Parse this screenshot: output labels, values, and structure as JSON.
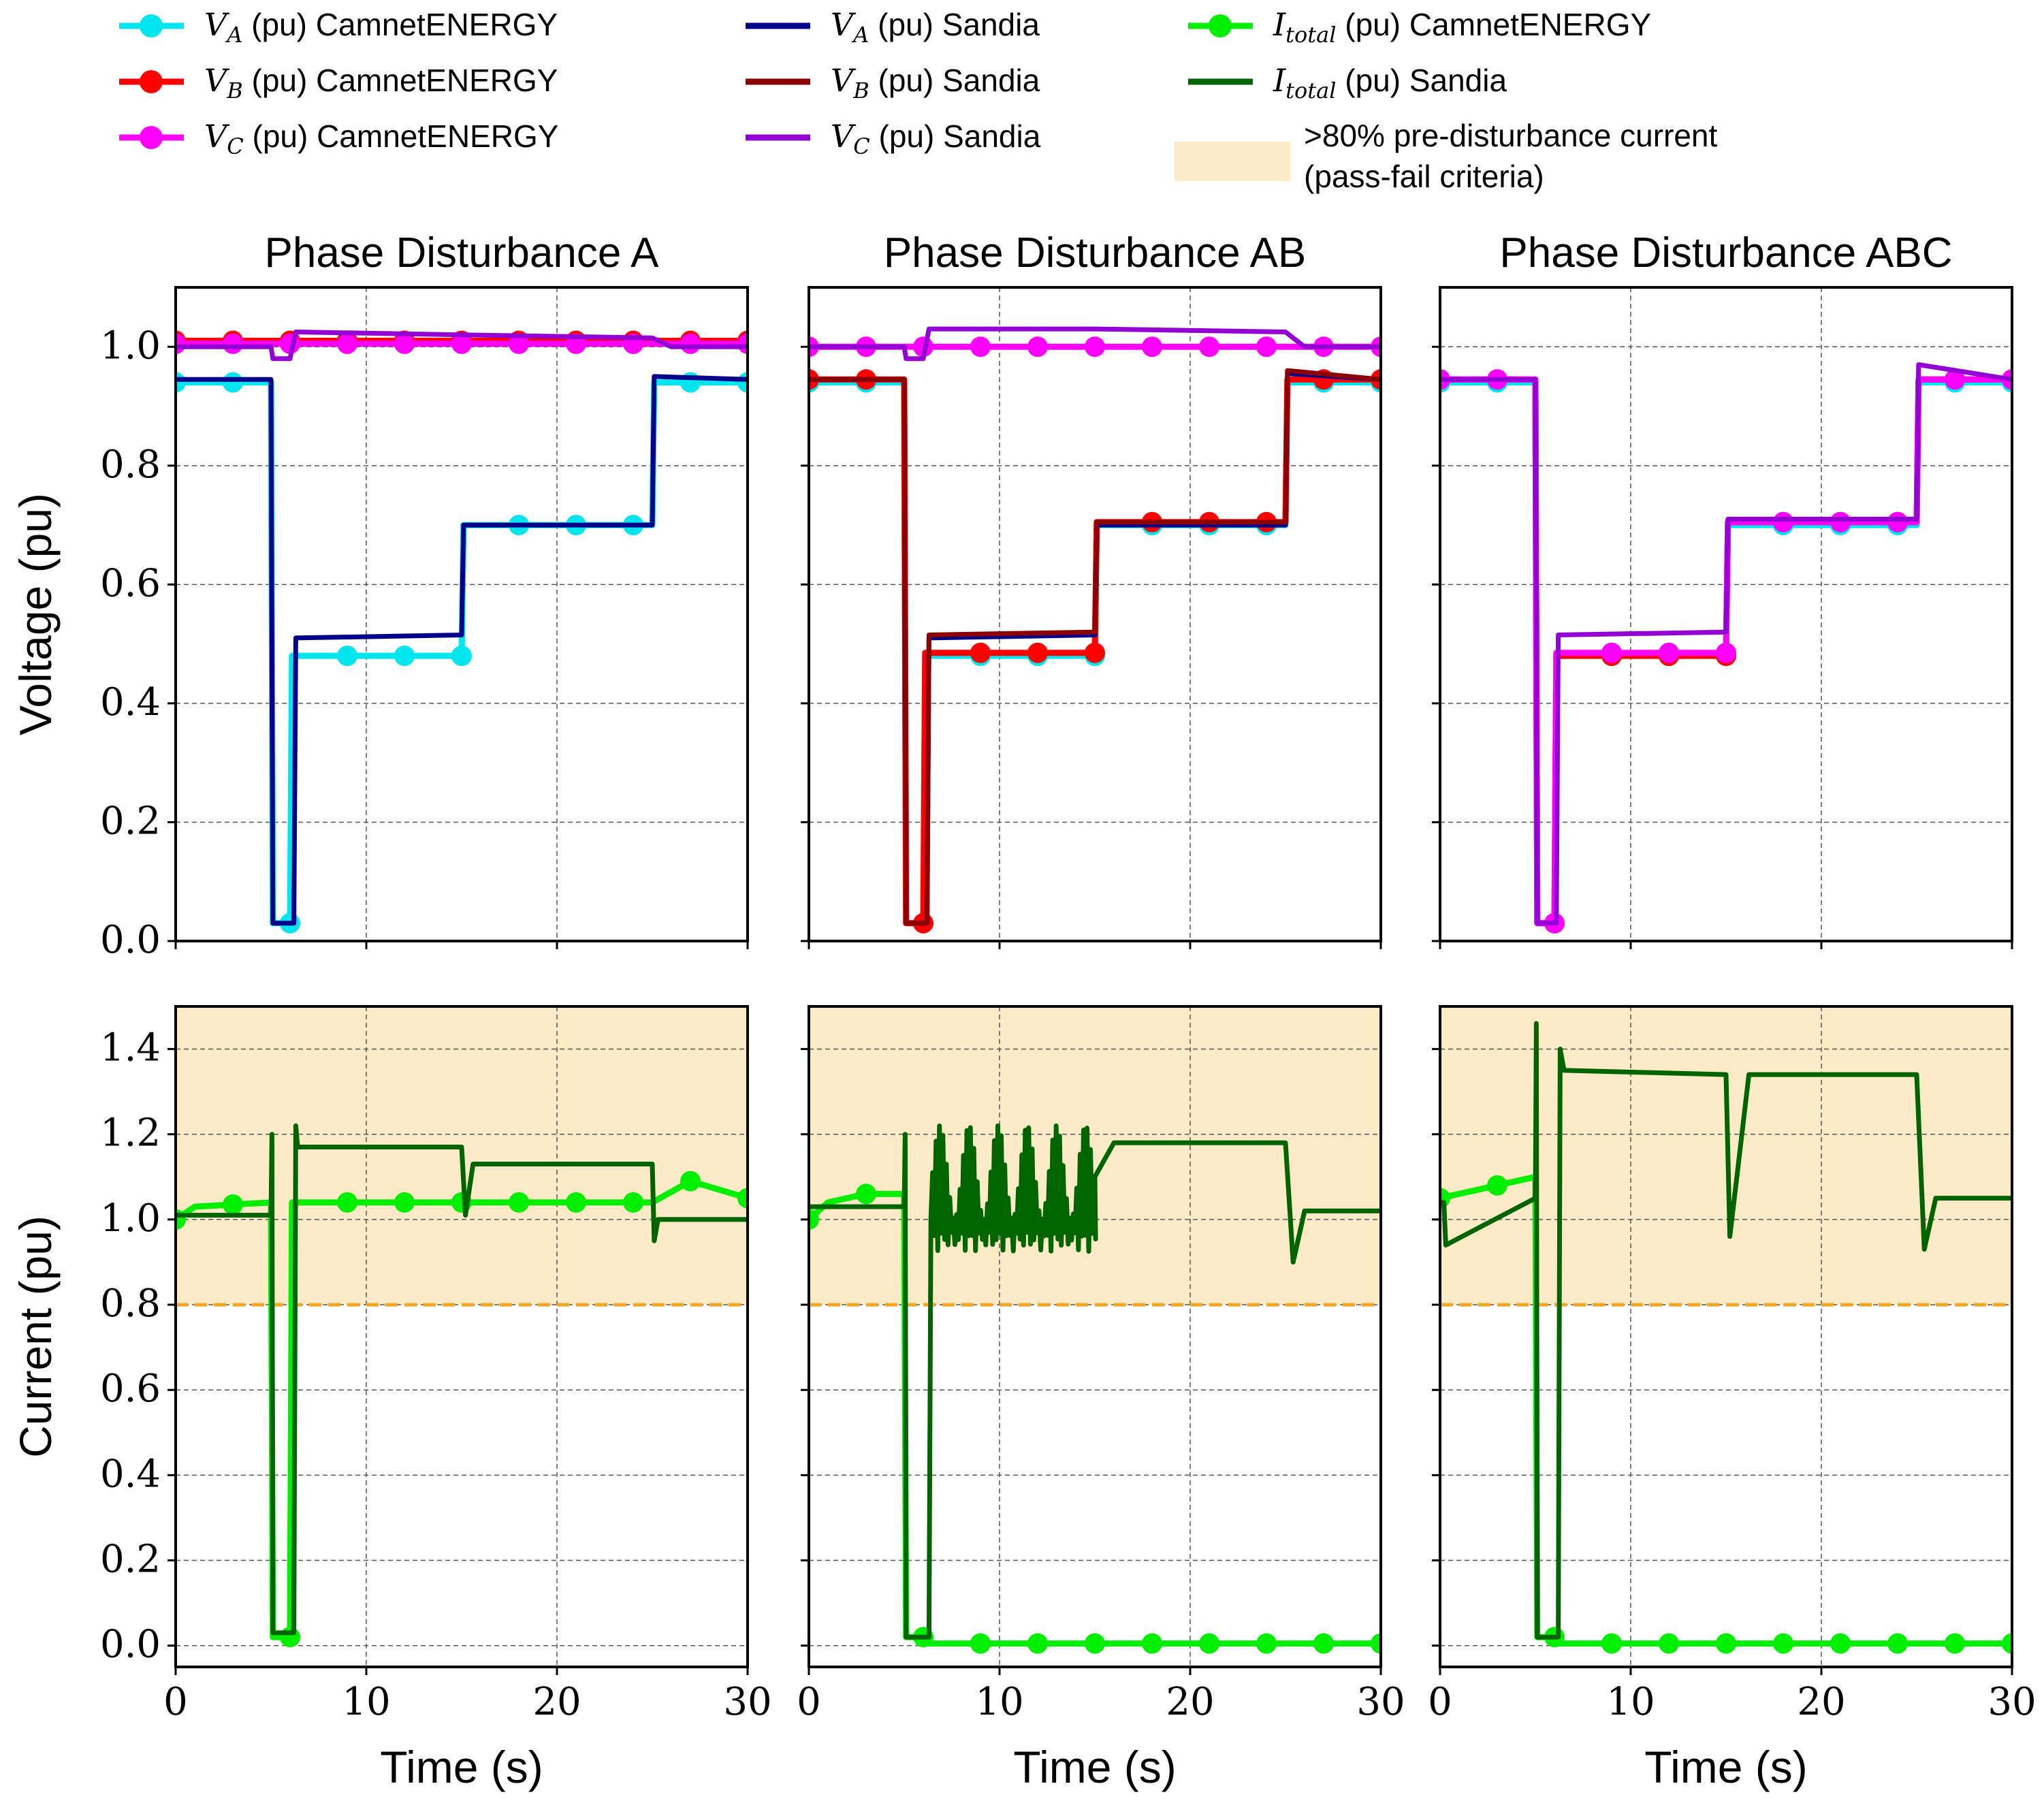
{
  "legend": {
    "entries": [
      {
        "var": "V",
        "sub": "A",
        "unit": "(pu)",
        "source": "CamnetENERGY",
        "color": "#00e5ee",
        "marker": true
      },
      {
        "var": "V",
        "sub": "B",
        "unit": "(pu)",
        "source": "CamnetENERGY",
        "color": "#ff0000",
        "marker": true
      },
      {
        "var": "V",
        "sub": "C",
        "unit": "(pu)",
        "source": "CamnetENERGY",
        "color": "#ff00ff",
        "marker": true
      },
      {
        "var": "V",
        "sub": "A",
        "unit": "(pu)",
        "source": "Sandia",
        "color": "#00008b",
        "marker": false
      },
      {
        "var": "V",
        "sub": "B",
        "unit": "(pu)",
        "source": "Sandia",
        "color": "#8b0000",
        "marker": false
      },
      {
        "var": "V",
        "sub": "C",
        "unit": "(pu)",
        "source": "Sandia",
        "color": "#9400d3",
        "marker": false
      },
      {
        "var": "I",
        "sub": "total",
        "unit": "(pu)",
        "source": "CamnetENERGY",
        "color": "#00ee00",
        "marker": true
      },
      {
        "var": "I",
        "sub": "total",
        "unit": "(pu)",
        "source": "Sandia",
        "color": "#006400",
        "marker": false
      }
    ],
    "band_label_line1": ">80% pre-disturbance current",
    "band_label_line2": "(pass-fail criteria)",
    "band_color": "#fdebc8"
  },
  "chart_data": [
    {
      "type": "line",
      "panel": "voltage",
      "title": "Phase Disturbance A",
      "ylabel": "Voltage (pu)",
      "xlim": [
        0,
        30
      ],
      "ylim": [
        0,
        1.1
      ],
      "yticks": [
        "0.0",
        "0.2",
        "0.4",
        "0.6",
        "0.8",
        "1.0"
      ],
      "xticks": [
        "0",
        "10",
        "20",
        "30"
      ],
      "series": [
        {
          "name": "V_A (pu) CamnetENERGY",
          "color": "#00e5ee",
          "marker": true,
          "x": [
            0,
            5,
            5.1,
            6,
            6.1,
            15,
            15.1,
            25,
            25.1,
            30
          ],
          "y": [
            0.94,
            0.94,
            0.03,
            0.03,
            0.48,
            0.48,
            0.7,
            0.7,
            0.94,
            0.94
          ]
        },
        {
          "name": "V_B (pu) CamnetENERGY",
          "color": "#ff0000",
          "marker": true,
          "x": [
            0,
            30
          ],
          "y": [
            1.01,
            1.01
          ]
        },
        {
          "name": "V_C (pu) CamnetENERGY",
          "color": "#ff00ff",
          "marker": true,
          "x": [
            0,
            30
          ],
          "y": [
            1.005,
            1.005
          ]
        },
        {
          "name": "V_A (pu) Sandia",
          "color": "#00008b",
          "marker": false,
          "x": [
            0,
            5,
            5.1,
            6.2,
            6.3,
            15,
            15.1,
            25,
            25.1,
            30
          ],
          "y": [
            0.945,
            0.945,
            0.03,
            0.03,
            0.51,
            0.515,
            0.7,
            0.7,
            0.95,
            0.945
          ]
        },
        {
          "name": "V_C (pu) Sandia",
          "color": "#9400d3",
          "marker": false,
          "x": [
            0,
            5,
            5.1,
            6,
            6.3,
            15,
            25,
            26,
            30
          ],
          "y": [
            1.0,
            1.0,
            0.98,
            0.98,
            1.025,
            1.02,
            1.015,
            1.0,
            1.0
          ]
        }
      ],
      "markers": [
        {
          "x": [
            0,
            3,
            6,
            9,
            12,
            15,
            18,
            21,
            24,
            27,
            30
          ],
          "series": [
            "V_A",
            "V_B",
            "V_C"
          ]
        }
      ]
    },
    {
      "type": "line",
      "panel": "voltage",
      "title": "Phase Disturbance AB",
      "ylabel": "",
      "xlim": [
        0,
        30
      ],
      "ylim": [
        0,
        1.1
      ],
      "series": [
        {
          "name": "V_A (pu) CamnetENERGY",
          "color": "#00e5ee",
          "marker": true,
          "x": [
            0,
            5,
            5.1,
            6,
            6.1,
            15,
            15.1,
            25,
            25.1,
            30
          ],
          "y": [
            0.94,
            0.94,
            0.03,
            0.03,
            0.48,
            0.48,
            0.7,
            0.7,
            0.94,
            0.94
          ]
        },
        {
          "name": "V_B (pu) CamnetENERGY",
          "color": "#ff0000",
          "marker": true,
          "x": [
            0,
            5,
            5.1,
            6,
            6.1,
            15,
            15.1,
            25,
            25.1,
            30
          ],
          "y": [
            0.945,
            0.945,
            0.03,
            0.03,
            0.485,
            0.485,
            0.705,
            0.705,
            0.945,
            0.945
          ]
        },
        {
          "name": "V_C (pu) CamnetENERGY",
          "color": "#ff00ff",
          "marker": true,
          "x": [
            0,
            30
          ],
          "y": [
            1.0,
            1.0
          ]
        },
        {
          "name": "V_A (pu) Sandia",
          "color": "#00008b",
          "marker": false,
          "x": [
            0,
            5,
            5.1,
            6.2,
            6.3,
            15,
            15.1,
            25,
            25.1,
            30
          ],
          "y": [
            0.945,
            0.945,
            0.03,
            0.03,
            0.51,
            0.515,
            0.7,
            0.7,
            0.955,
            0.945
          ]
        },
        {
          "name": "V_B (pu) Sandia",
          "color": "#8b0000",
          "marker": false,
          "x": [
            0,
            5,
            5.1,
            6.2,
            6.3,
            15,
            15.1,
            25,
            25.1,
            30
          ],
          "y": [
            0.945,
            0.945,
            0.03,
            0.03,
            0.515,
            0.52,
            0.705,
            0.705,
            0.96,
            0.945
          ]
        },
        {
          "name": "V_C (pu) Sandia",
          "color": "#9400d3",
          "marker": false,
          "x": [
            0,
            5,
            5.1,
            6,
            6.3,
            15,
            25,
            26,
            30
          ],
          "y": [
            1.0,
            1.0,
            0.98,
            0.98,
            1.03,
            1.03,
            1.025,
            1.0,
            1.0
          ]
        }
      ]
    },
    {
      "type": "line",
      "panel": "voltage",
      "title": "Phase Disturbance ABC",
      "ylabel": "",
      "xlim": [
        0,
        30
      ],
      "ylim": [
        0,
        1.1
      ],
      "series": [
        {
          "name": "V_A (pu) CamnetENERGY",
          "color": "#00e5ee",
          "marker": true,
          "x": [
            0,
            5,
            5.1,
            6,
            6.1,
            15,
            15.1,
            25,
            25.1,
            30
          ],
          "y": [
            0.94,
            0.94,
            0.03,
            0.03,
            0.48,
            0.48,
            0.7,
            0.7,
            0.94,
            0.94
          ]
        },
        {
          "name": "V_B (pu) CamnetENERGY",
          "color": "#ff0000",
          "marker": true,
          "x": [
            0,
            5,
            5.1,
            6,
            6.1,
            15,
            15.1,
            25,
            25.1,
            30
          ],
          "y": [
            0.945,
            0.945,
            0.03,
            0.03,
            0.48,
            0.48,
            0.705,
            0.705,
            0.945,
            0.945
          ]
        },
        {
          "name": "V_C (pu) CamnetENERGY",
          "color": "#ff00ff",
          "marker": true,
          "x": [
            0,
            5,
            5.1,
            6,
            6.1,
            15,
            15.1,
            25,
            25.1,
            30
          ],
          "y": [
            0.945,
            0.945,
            0.03,
            0.03,
            0.485,
            0.485,
            0.705,
            0.705,
            0.945,
            0.945
          ]
        },
        {
          "name": "V_C (pu) Sandia",
          "color": "#9400d3",
          "marker": false,
          "x": [
            0,
            5,
            5.1,
            6.1,
            6.2,
            15,
            15.1,
            25,
            25.1,
            30
          ],
          "y": [
            0.945,
            0.945,
            0.03,
            0.03,
            0.515,
            0.52,
            0.71,
            0.71,
            0.97,
            0.945
          ]
        }
      ]
    },
    {
      "type": "line",
      "panel": "current",
      "title": "",
      "ylabel": "Current (pu)",
      "xlabel": "Time (s)",
      "xlim": [
        0,
        30
      ],
      "ylim": [
        -0.05,
        1.5
      ],
      "threshold": 0.8,
      "yticks": [
        "0.0",
        "0.2",
        "0.4",
        "0.6",
        "0.8",
        "1.0",
        "1.2",
        "1.4"
      ],
      "xticks": [
        "0",
        "10",
        "20",
        "30"
      ],
      "series": [
        {
          "name": "I_total (pu) CamnetENERGY",
          "color": "#00ee00",
          "marker": true,
          "x": [
            0,
            1,
            5,
            5.1,
            6,
            6.1,
            25,
            27,
            30
          ],
          "y": [
            1.0,
            1.03,
            1.04,
            0.02,
            0.02,
            1.04,
            1.04,
            1.09,
            1.05
          ]
        },
        {
          "name": "I_total (pu) Sandia",
          "color": "#006400",
          "marker": false,
          "x": [
            0,
            5,
            5.05,
            5.1,
            6.2,
            6.3,
            6.4,
            15,
            15.2,
            15.6,
            25,
            25.1,
            25.3,
            30
          ],
          "y": [
            1.01,
            1.01,
            1.2,
            0.03,
            0.03,
            1.22,
            1.17,
            1.17,
            1.01,
            1.13,
            1.13,
            0.95,
            1.0,
            1.0
          ]
        }
      ]
    },
    {
      "type": "line",
      "panel": "current",
      "title": "",
      "ylabel": "",
      "xlabel": "Time (s)",
      "xlim": [
        0,
        30
      ],
      "ylim": [
        -0.05,
        1.5
      ],
      "threshold": 0.8,
      "series": [
        {
          "name": "I_total (pu) CamnetENERGY",
          "color": "#00ee00",
          "marker": true,
          "x": [
            0,
            1,
            3,
            5,
            5.1,
            6,
            6.1,
            30
          ],
          "y": [
            1.0,
            1.04,
            1.06,
            1.06,
            0.02,
            0.02,
            0.005,
            0.005
          ]
        },
        {
          "name": "I_total (pu) Sandia",
          "color": "#006400",
          "marker": false,
          "x": [
            0,
            5,
            5.05,
            5.1,
            6.3,
            6.4,
            15,
            16,
            25,
            25.4,
            26,
            30
          ],
          "y": [
            1.03,
            1.03,
            1.2,
            0.02,
            0.02,
            1.0,
            1.1,
            1.18,
            1.18,
            0.9,
            1.02,
            1.02
          ],
          "oscillation": [
            6.4,
            15,
            0.92,
            1.22
          ]
        }
      ]
    },
    {
      "type": "line",
      "panel": "current",
      "title": "",
      "ylabel": "",
      "xlabel": "Time (s)",
      "xlim": [
        0,
        30
      ],
      "ylim": [
        -0.05,
        1.5
      ],
      "threshold": 0.8,
      "series": [
        {
          "name": "I_total (pu) CamnetENERGY",
          "color": "#00ee00",
          "marker": true,
          "x": [
            0,
            3,
            5,
            5.1,
            6,
            6.1,
            30
          ],
          "y": [
            1.05,
            1.08,
            1.1,
            0.02,
            0.02,
            0.005,
            0.005
          ]
        },
        {
          "name": "I_total (pu) Sandia",
          "color": "#006400",
          "marker": false,
          "x": [
            0,
            0.2,
            0.3,
            5,
            5.05,
            5.1,
            6.2,
            6.3,
            6.5,
            15,
            15.2,
            16.2,
            25,
            25.4,
            26,
            30
          ],
          "y": [
            1.04,
            1.04,
            0.94,
            1.05,
            1.46,
            0.02,
            0.02,
            1.4,
            1.35,
            1.34,
            0.96,
            1.34,
            1.34,
            0.93,
            1.05,
            1.05
          ]
        }
      ]
    }
  ]
}
